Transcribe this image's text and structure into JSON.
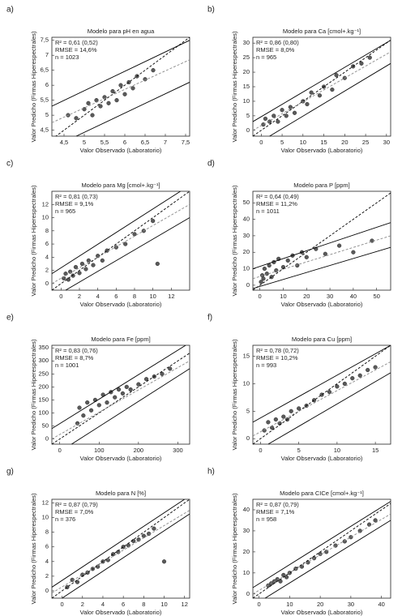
{
  "chart_data": [
    {
      "type": "scatter",
      "label": "a)",
      "title": "Modelo para pH en agua",
      "xlabel": "Valor Observado (Laboratorio)",
      "ylabel": "Valor Predicho (Firmas Hiperespectrales)",
      "annotations": [
        "R² = 0,61 (0,52)",
        "RMSE = 14,6%",
        "n = 1023"
      ],
      "xlim": [
        4.2,
        7.6
      ],
      "ylim": [
        4.3,
        7.6
      ],
      "xticks": [
        {
          "value": 4.5,
          "label": "4,5"
        },
        5,
        {
          "value": 5.5,
          "label": "5,5"
        },
        6,
        {
          "value": 6.5,
          "label": "6,5"
        },
        7,
        {
          "value": 7.5,
          "label": "7,5"
        }
      ],
      "yticks": [
        {
          "value": 4.5,
          "label": "4,5"
        },
        5,
        {
          "value": 5.5,
          "label": "5,5"
        },
        6,
        {
          "value": 6.5,
          "label": "6,5"
        },
        7,
        {
          "value": 7.5,
          "label": "7,5"
        }
      ],
      "series": [
        {
          "type": "scatter",
          "color": "#5a5a5a",
          "x": [
            4.6,
            4.8,
            5.0,
            5.1,
            5.2,
            5.3,
            5.4,
            5.5,
            5.6,
            5.7,
            5.8,
            5.9,
            6.0,
            6.1,
            6.2,
            6.3,
            6.5,
            6.7
          ],
          "y": [
            5.0,
            4.9,
            5.2,
            5.4,
            5.0,
            5.5,
            5.3,
            5.6,
            5.4,
            5.8,
            5.5,
            6.0,
            5.7,
            6.1,
            5.9,
            6.3,
            6.2,
            6.5
          ]
        },
        {
          "type": "line",
          "color": "#000000",
          "dash": true,
          "x": [
            4.2,
            7.6
          ],
          "y": [
            4.2,
            7.6
          ]
        },
        {
          "type": "line",
          "color": "#888888",
          "dash": true,
          "x": [
            4.2,
            7.6
          ],
          "y": [
            4.75,
            6.85
          ]
        },
        {
          "type": "line",
          "color": "#000000",
          "dash": false,
          "x": [
            4.2,
            7.6
          ],
          "y": [
            5.3,
            7.5
          ]
        },
        {
          "type": "line",
          "color": "#000000",
          "dash": false,
          "x": [
            4.8,
            7.6
          ],
          "y": [
            4.3,
            6.1
          ]
        }
      ]
    },
    {
      "type": "scatter",
      "label": "b)",
      "title": "Modelo para Ca [cmol+.kg⁻¹]",
      "xlabel": "Valor Observado (Laboratorio)",
      "ylabel": "Valor Predicho (Firmas Hiperespectrales)",
      "annotations": [
        "R² = 0,86 (0,80)",
        "RMSE = 8,0%",
        "n = 965"
      ],
      "xlim": [
        -2,
        31
      ],
      "ylim": [
        -2,
        32
      ],
      "xticks": [
        0,
        5,
        10,
        15,
        20,
        25,
        30
      ],
      "yticks": [
        0,
        5,
        10,
        15,
        20,
        25,
        30
      ],
      "series": [
        {
          "type": "scatter",
          "color": "#5a5a5a",
          "x": [
            0.5,
            1,
            2,
            3,
            4,
            5,
            6,
            7,
            8,
            10,
            11,
            12,
            14,
            15,
            17,
            18,
            20,
            22,
            24,
            26
          ],
          "y": [
            2,
            4,
            3,
            5,
            3,
            7,
            5,
            8,
            6,
            10,
            9,
            13,
            12,
            15,
            14,
            19,
            18,
            22,
            23,
            25
          ]
        },
        {
          "type": "line",
          "color": "#000000",
          "dash": true,
          "x": [
            -2,
            31
          ],
          "y": [
            -2,
            31
          ]
        },
        {
          "type": "line",
          "color": "#888888",
          "dash": true,
          "x": [
            -2,
            31
          ],
          "y": [
            0,
            27
          ]
        },
        {
          "type": "line",
          "color": "#000000",
          "dash": false,
          "x": [
            -2,
            31
          ],
          "y": [
            3,
            31
          ]
        },
        {
          "type": "line",
          "color": "#000000",
          "dash": false,
          "x": [
            2,
            31
          ],
          "y": [
            -2,
            23
          ]
        }
      ]
    },
    {
      "type": "scatter",
      "label": "c)",
      "title": "Modelo para Mg [cmol+.kg⁻¹]",
      "xlabel": "Valor Observado (Laboratorio)",
      "ylabel": "Valor Predicho (Firmas Hiperespectrales)",
      "annotations": [
        "R² = 0,81 (0,73)",
        "RMSE = 9,1%",
        "n = 965"
      ],
      "xlim": [
        -1,
        14
      ],
      "ylim": [
        -1,
        14
      ],
      "xticks": [
        0,
        2,
        4,
        6,
        8,
        10,
        12
      ],
      "yticks": [
        0,
        2,
        4,
        6,
        8,
        10,
        12
      ],
      "series": [
        {
          "type": "scatter",
          "color": "#5a5a5a",
          "x": [
            0.3,
            0.5,
            0.8,
            1,
            1.3,
            1.6,
            2,
            2.3,
            2.7,
            3,
            3.5,
            4,
            4.5,
            5,
            6,
            7,
            8,
            9,
            10,
            10.5
          ],
          "y": [
            0.8,
            1.5,
            0.6,
            1.8,
            1.2,
            2.5,
            1.6,
            3,
            2.2,
            3.5,
            2.8,
            4.2,
            3.5,
            5,
            5.5,
            6,
            7.5,
            8,
            9.5,
            3
          ]
        },
        {
          "type": "line",
          "color": "#000000",
          "dash": true,
          "x": [
            -1,
            14
          ],
          "y": [
            -1,
            14
          ]
        },
        {
          "type": "line",
          "color": "#888888",
          "dash": true,
          "x": [
            -1,
            14
          ],
          "y": [
            0,
            12
          ]
        },
        {
          "type": "line",
          "color": "#000000",
          "dash": false,
          "x": [
            -1,
            13
          ],
          "y": [
            1.5,
            14
          ]
        },
        {
          "type": "line",
          "color": "#000000",
          "dash": false,
          "x": [
            0.5,
            14
          ],
          "y": [
            -1,
            10
          ]
        }
      ]
    },
    {
      "type": "scatter",
      "label": "d)",
      "title": "Modelo para P [ppm]",
      "xlabel": "Valor Observado (Laboratorio)",
      "ylabel": "Valor Predicho (Firmas Hiperespectrales)",
      "annotations": [
        "R² = 0,64 (0,49)",
        "RMSE = 11,2%",
        "n = 1011"
      ],
      "xlim": [
        -3,
        56
      ],
      "ylim": [
        -3,
        57
      ],
      "xticks": [
        0,
        10,
        20,
        30,
        40,
        50
      ],
      "yticks": [
        0,
        10,
        20,
        30,
        40,
        50
      ],
      "series": [
        {
          "type": "scatter",
          "color": "#5a5a5a",
          "x": [
            0.5,
            1,
            1.5,
            2,
            3,
            4,
            5,
            6,
            7,
            8,
            10,
            12,
            14,
            16,
            18,
            20,
            24,
            28,
            34,
            40,
            48
          ],
          "y": [
            2,
            6,
            4,
            10,
            7,
            12,
            5,
            14,
            9,
            16,
            11,
            15,
            18,
            12,
            20,
            17,
            22,
            19,
            24,
            20,
            27
          ]
        },
        {
          "type": "line",
          "color": "#000000",
          "dash": true,
          "x": [
            -3,
            56
          ],
          "y": [
            -3,
            56
          ]
        },
        {
          "type": "line",
          "color": "#888888",
          "dash": true,
          "x": [
            -3,
            56
          ],
          "y": [
            4,
            30
          ]
        },
        {
          "type": "line",
          "color": "#000000",
          "dash": false,
          "x": [
            -3,
            56
          ],
          "y": [
            10,
            38
          ]
        },
        {
          "type": "line",
          "color": "#000000",
          "dash": false,
          "x": [
            -3,
            56
          ],
          "y": [
            -2,
            23
          ]
        }
      ]
    },
    {
      "type": "scatter",
      "label": "e)",
      "title": "Modelo para Fe [ppm]",
      "xlabel": "Valor Observado (Laboratorio)",
      "ylabel": "Valor Predicho (Firmas Hiperespectrales)",
      "annotations": [
        "R² = 0,83 (0,76)",
        "RMSE = 8,7%",
        "n = 1001"
      ],
      "xlim": [
        -20,
        330
      ],
      "ylim": [
        -20,
        360
      ],
      "xticks": [
        0,
        100,
        200,
        300
      ],
      "yticks": [
        0,
        50,
        100,
        150,
        200,
        250,
        300,
        350
      ],
      "series": [
        {
          "type": "scatter",
          "color": "#5a5a5a",
          "x": [
            45,
            50,
            60,
            70,
            80,
            90,
            100,
            110,
            120,
            130,
            140,
            150,
            160,
            170,
            180,
            200,
            220,
            240,
            260,
            280
          ],
          "y": [
            60,
            120,
            90,
            140,
            110,
            150,
            130,
            170,
            140,
            180,
            160,
            190,
            175,
            200,
            190,
            210,
            230,
            240,
            250,
            270
          ]
        },
        {
          "type": "line",
          "color": "#000000",
          "dash": true,
          "x": [
            -20,
            330
          ],
          "y": [
            -20,
            330
          ]
        },
        {
          "type": "line",
          "color": "#888888",
          "dash": true,
          "x": [
            -20,
            330
          ],
          "y": [
            0,
            300
          ]
        },
        {
          "type": "line",
          "color": "#000000",
          "dash": false,
          "x": [
            -20,
            320
          ],
          "y": [
            40,
            360
          ]
        },
        {
          "type": "line",
          "color": "#000000",
          "dash": false,
          "x": [
            30,
            330
          ],
          "y": [
            -20,
            270
          ]
        }
      ]
    },
    {
      "type": "scatter",
      "label": "f)",
      "title": "Modelo para Cu [ppm]",
      "xlabel": "Valor Observado (Laboratorio)",
      "ylabel": "Valor Predicho (Firmas Hiperespectrales)",
      "annotations": [
        "R² = 0,78 (0,72)",
        "RMSE = 10,2%",
        "n = 993"
      ],
      "xlim": [
        -1,
        17
      ],
      "ylim": [
        -1,
        17
      ],
      "xticks": [
        0,
        5,
        10,
        15
      ],
      "yticks": [
        0,
        5,
        10,
        15
      ],
      "series": [
        {
          "type": "scatter",
          "color": "#5a5a5a",
          "x": [
            0.5,
            1,
            1.5,
            2,
            2.5,
            3,
            3.5,
            4,
            5,
            6,
            7,
            8,
            9,
            10,
            11,
            12,
            13,
            14,
            15
          ],
          "y": [
            1.5,
            3,
            2,
            3.5,
            2.8,
            4,
            3.5,
            5,
            5.5,
            6,
            7,
            8,
            8.5,
            9.5,
            10,
            11,
            11.5,
            12.5,
            13
          ]
        },
        {
          "type": "line",
          "color": "#000000",
          "dash": true,
          "x": [
            -1,
            17
          ],
          "y": [
            -1,
            17
          ]
        },
        {
          "type": "line",
          "color": "#888888",
          "dash": true,
          "x": [
            -1,
            17
          ],
          "y": [
            0.5,
            14
          ]
        },
        {
          "type": "line",
          "color": "#000000",
          "dash": false,
          "x": [
            -1,
            17
          ],
          "y": [
            3,
            17
          ]
        },
        {
          "type": "line",
          "color": "#000000",
          "dash": false,
          "x": [
            1,
            17
          ],
          "y": [
            -1,
            12
          ]
        }
      ]
    },
    {
      "type": "scatter",
      "label": "g)",
      "title": "Modelo para N [%]",
      "xlabel": "Valor Observado (Laboratorio)",
      "ylabel": "Valor Predicho (Firmas Hiperespectrales)",
      "annotations": [
        "R² = 0,87 (0,79)",
        "RMSE = 7,0%",
        "n = 376"
      ],
      "xlim": [
        -1,
        12.5
      ],
      "ylim": [
        -1,
        12.5
      ],
      "xticks": [
        0,
        2,
        4,
        6,
        8,
        10,
        12
      ],
      "yticks": [
        0,
        2,
        4,
        6,
        8,
        10,
        12
      ],
      "series": [
        {
          "type": "scatter",
          "color": "#5a5a5a",
          "x": [
            0.5,
            1,
            1.5,
            2,
            2.5,
            3,
            3.5,
            4,
            4.5,
            5,
            5.5,
            6,
            6.5,
            7,
            7.5,
            8,
            8.5,
            9,
            10
          ],
          "y": [
            0.5,
            1.5,
            1.2,
            2.2,
            2.5,
            3,
            3.3,
            4,
            4.2,
            5,
            5.3,
            6,
            6.2,
            6.8,
            7,
            7.5,
            7.8,
            8.5,
            4
          ]
        },
        {
          "type": "line",
          "color": "#000000",
          "dash": true,
          "x": [
            -1,
            12.5
          ],
          "y": [
            -1,
            12.5
          ]
        },
        {
          "type": "line",
          "color": "#888888",
          "dash": true,
          "x": [
            -1,
            12.5
          ],
          "y": [
            -0.3,
            11
          ]
        },
        {
          "type": "line",
          "color": "#000000",
          "dash": false,
          "x": [
            -1,
            12
          ],
          "y": [
            0.5,
            12.5
          ]
        },
        {
          "type": "line",
          "color": "#000000",
          "dash": false,
          "x": [
            0,
            12.5
          ],
          "y": [
            -1,
            10.5
          ]
        }
      ]
    },
    {
      "type": "scatter",
      "label": "h)",
      "title": "Modelo para CICe [cmol+.kg⁻¹]",
      "xlabel": "Valor Observado (Laboratorio)",
      "ylabel": "Valor Predicho (Firmas Hiperespectrales)",
      "annotations": [
        "R² = 0,87 (0,79)",
        "RMSE = 7,1%",
        "n = 958"
      ],
      "xlim": [
        -2,
        43
      ],
      "ylim": [
        -2,
        45
      ],
      "xticks": [
        0,
        10,
        20,
        30,
        40
      ],
      "yticks": [
        0,
        10,
        20,
        30,
        40
      ],
      "series": [
        {
          "type": "scatter",
          "color": "#5a5a5a",
          "x": [
            3,
            4,
            5,
            6,
            7,
            8,
            9,
            10,
            12,
            14,
            16,
            18,
            20,
            22,
            25,
            28,
            30,
            33,
            36,
            38
          ],
          "y": [
            4,
            5,
            6,
            7,
            6,
            9,
            8,
            10,
            12,
            13,
            15,
            17,
            19,
            20,
            23,
            25,
            27,
            30,
            33,
            35
          ]
        },
        {
          "type": "line",
          "color": "#000000",
          "dash": true,
          "x": [
            -2,
            43
          ],
          "y": [
            -2,
            43
          ]
        },
        {
          "type": "line",
          "color": "#888888",
          "dash": true,
          "x": [
            -2,
            43
          ],
          "y": [
            0,
            38
          ]
        },
        {
          "type": "line",
          "color": "#000000",
          "dash": false,
          "x": [
            -2,
            43
          ],
          "y": [
            3,
            44
          ]
        },
        {
          "type": "line",
          "color": "#000000",
          "dash": false,
          "x": [
            2,
            43
          ],
          "y": [
            -2,
            35
          ]
        }
      ]
    }
  ]
}
